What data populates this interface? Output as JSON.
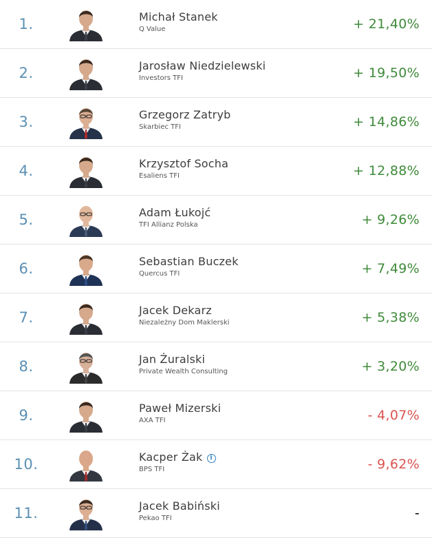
{
  "colors": {
    "rank": "#5a8fb4",
    "positive": "#3f8a3a",
    "negative": "#d9534f",
    "neutral": "#000000"
  },
  "ranking": [
    {
      "rank": "1.",
      "name": "Michał Stanek",
      "company": "Q Value",
      "return": "+ 21,40%",
      "trend": "positive",
      "photo": "suit-dark"
    },
    {
      "rank": "2.",
      "name": "Jarosław Niedzielewski",
      "company": "Investors TFI",
      "return": "+ 19,50%",
      "trend": "positive",
      "photo": "suit-dark"
    },
    {
      "rank": "3.",
      "name": "Grzegorz Zatryb",
      "company": "Skarbiec TFI",
      "return": "+ 14,86%",
      "trend": "positive",
      "photo": "suit-navy-redtie"
    },
    {
      "rank": "4.",
      "name": "Krzysztof Socha",
      "company": "Esaliens TFI",
      "return": "+ 12,88%",
      "trend": "positive",
      "photo": "suit-dark"
    },
    {
      "rank": "5.",
      "name": "Adam Łukojć",
      "company": "TFI Allianz Polska",
      "return": "+ 9,26%",
      "trend": "positive",
      "photo": "suit-navy-bald"
    },
    {
      "rank": "6.",
      "name": "Sebastian Buczek",
      "company": "Quercus TFI",
      "return": "+ 7,49%",
      "trend": "positive",
      "photo": "suit-navy"
    },
    {
      "rank": "7.",
      "name": "Jacek Dekarz",
      "company": "Niezależny Dom Maklerski",
      "return": "+ 5,38%",
      "trend": "positive",
      "photo": "suit-dark"
    },
    {
      "rank": "8.",
      "name": "Jan Żuralski",
      "company": "Private Wealth Consulting",
      "return": "+ 3,20%",
      "trend": "positive",
      "photo": "suit-dark-glasses"
    },
    {
      "rank": "9.",
      "name": "Paweł Mizerski",
      "company": "AXA TFI",
      "return": "- 4,07%",
      "trend": "negative",
      "photo": "suit-dark"
    },
    {
      "rank": "10.",
      "name": "Kacper Żak",
      "company": "BPS TFI",
      "return": "- 9,62%",
      "trend": "negative",
      "photo": "suit-dark-redtie",
      "info_icon": "i"
    },
    {
      "rank": "11.",
      "name": "Jacek Babiński",
      "company": "Pekao TFI",
      "return": "-",
      "trend": "neutral",
      "photo": "suit-navy-glasses"
    }
  ]
}
